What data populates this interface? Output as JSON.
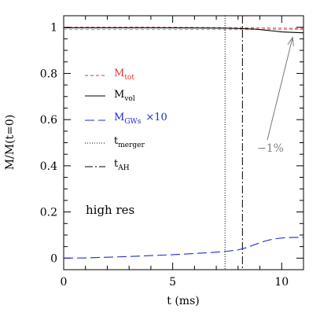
{
  "chart_data": {
    "type": "line",
    "xlabel": "t (ms)",
    "ylabel": "M/M(t=0)",
    "xlim": [
      0,
      11
    ],
    "ylim": [
      -0.05,
      1.05
    ],
    "x_ticks": [
      0,
      5,
      10
    ],
    "x_tick_labels": [
      "0",
      "5",
      "10"
    ],
    "y_ticks": [
      0,
      0.2,
      0.4,
      0.6,
      0.8,
      1
    ],
    "y_tick_labels": [
      "0",
      "0.2",
      "0.4",
      "0.6",
      "0.8",
      "1"
    ],
    "x_minor_step": 1,
    "y_minor_step": 0.05,
    "grid": false,
    "legend_placement": "left-center",
    "series": [
      {
        "name": "M_tot",
        "label_main": "M",
        "label_sub": "tot",
        "color": "#e8312f",
        "dash": "short-dash",
        "x": [
          0,
          2,
          4,
          6,
          7.4,
          8.2,
          9,
          9.5,
          10,
          10.5,
          11
        ],
        "y": [
          1.0,
          1.0,
          1.0,
          0.999,
          0.998,
          0.998,
          0.997,
          0.996,
          0.996,
          0.995,
          0.995
        ]
      },
      {
        "name": "M_vol",
        "label_main": "M",
        "label_sub": "vol",
        "color": "#000000",
        "dash": "solid",
        "x": [
          0,
          2,
          4,
          6,
          7.4,
          8.2,
          8.8,
          9.2,
          9.6,
          10,
          10.5,
          11
        ],
        "y": [
          0.998,
          0.998,
          0.998,
          0.997,
          0.996,
          0.994,
          0.992,
          0.988,
          0.984,
          0.98,
          0.978,
          0.976
        ]
      },
      {
        "name": "M_GWs ×10",
        "label_main": "M",
        "label_sub": "GWs",
        "label_suffix": "×10",
        "color": "#1f2bd6",
        "dash": "long-dash",
        "x": [
          0,
          1,
          2,
          3,
          4,
          5,
          6,
          7,
          7.5,
          8,
          8.3,
          8.6,
          8.9,
          9.2,
          9.5,
          9.8,
          10.1,
          10.5,
          11
        ],
        "y": [
          0.0,
          0.001,
          0.004,
          0.007,
          0.011,
          0.015,
          0.02,
          0.026,
          0.03,
          0.036,
          0.043,
          0.053,
          0.063,
          0.073,
          0.08,
          0.085,
          0.088,
          0.09,
          0.09
        ]
      }
    ],
    "vertical_lines": [
      {
        "name": "t_merger",
        "label_main": "t",
        "label_sub": "merger",
        "x": 7.4,
        "color": "#000000",
        "dash": "dotted"
      },
      {
        "name": "t_AH",
        "label_main": "t",
        "label_sub": "AH",
        "x": 8.2,
        "color": "#000000",
        "dash": "dash-dot"
      }
    ],
    "reference_line": {
      "y": 0.99,
      "color": "#999999",
      "dash": "short-dash"
    },
    "annotations": [
      {
        "text": "high res"
      },
      {
        "text": "−1%",
        "color": "#808080",
        "arrow_to": {
          "x": 10.5,
          "y": 0.99
        },
        "arrow_color": "#777777"
      }
    ]
  }
}
